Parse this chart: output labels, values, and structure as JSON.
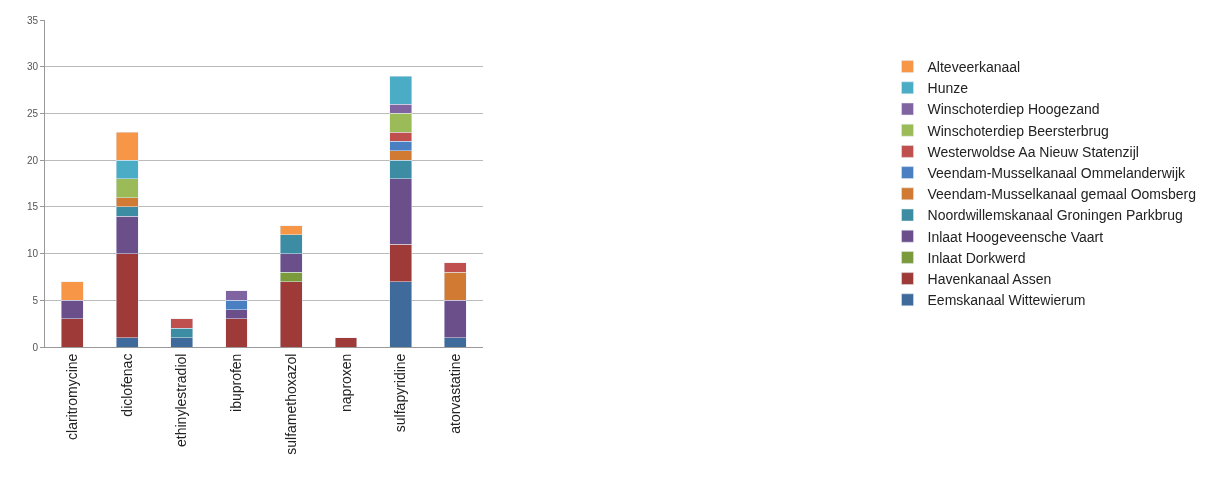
{
  "chart_data": {
    "type": "bar",
    "stacked": true,
    "categories": [
      "claritromycine",
      "diclofenac",
      "ethinylestradiol",
      "ibuprofen",
      "sulfamethoxazol",
      "naproxen",
      "sulfapyridine",
      "atorvastatine"
    ],
    "series": [
      {
        "name": "Eemskanaal Wittewierum",
        "color": "#3f6a9c",
        "values": [
          null,
          1,
          1,
          null,
          null,
          null,
          7,
          1
        ]
      },
      {
        "name": "Havenkanaal Assen",
        "color": "#9e3b38",
        "values": [
          3,
          9,
          null,
          3,
          7,
          1,
          4,
          null
        ]
      },
      {
        "name": "Inlaat Dorkwerd",
        "color": "#7a9a3c",
        "values": [
          null,
          null,
          null,
          null,
          1,
          null,
          null,
          null
        ]
      },
      {
        "name": "Inlaat Hoogeveensche Vaart",
        "color": "#6a4f8a",
        "values": [
          2,
          4,
          null,
          1,
          2,
          null,
          7,
          4
        ]
      },
      {
        "name": "Noordwillemskanaal Groningen Parkbrug",
        "color": "#3c8da3",
        "values": [
          null,
          1,
          1,
          null,
          2,
          null,
          2,
          null
        ]
      },
      {
        "name": "Veendam-Musselkanaal gemaal Oomsberg",
        "color": "#d07a34",
        "values": [
          null,
          1,
          null,
          null,
          null,
          null,
          1,
          3
        ]
      },
      {
        "name": "Veendam-Musselkanaal Ommelanderwijk",
        "color": "#4a7fc1",
        "values": [
          null,
          null,
          null,
          1,
          null,
          null,
          1,
          null
        ]
      },
      {
        "name": "Westerwoldse Aa Nieuw Statenzijl",
        "color": "#c0504d",
        "values": [
          null,
          null,
          1,
          null,
          null,
          null,
          1,
          1
        ]
      },
      {
        "name": "Winschoterdiep Beersterbrug",
        "color": "#9bbb59",
        "values": [
          null,
          2,
          null,
          null,
          null,
          null,
          2,
          null
        ]
      },
      {
        "name": "Winschoterdiep Hoogezand",
        "color": "#8064a2",
        "values": [
          null,
          null,
          null,
          1,
          null,
          null,
          1,
          null
        ]
      },
      {
        "name": "Hunze",
        "color": "#4bacc6",
        "values": [
          null,
          2,
          null,
          null,
          null,
          null,
          3,
          null
        ]
      },
      {
        "name": "Alteveerkanaal",
        "color": "#f79646",
        "values": [
          2,
          3,
          null,
          null,
          1,
          null,
          null,
          null
        ]
      }
    ],
    "ylim": [
      0,
      35
    ],
    "yticks": [
      0,
      5,
      10,
      15,
      20,
      25,
      30,
      35
    ],
    "grid": "y",
    "legend": "right"
  }
}
